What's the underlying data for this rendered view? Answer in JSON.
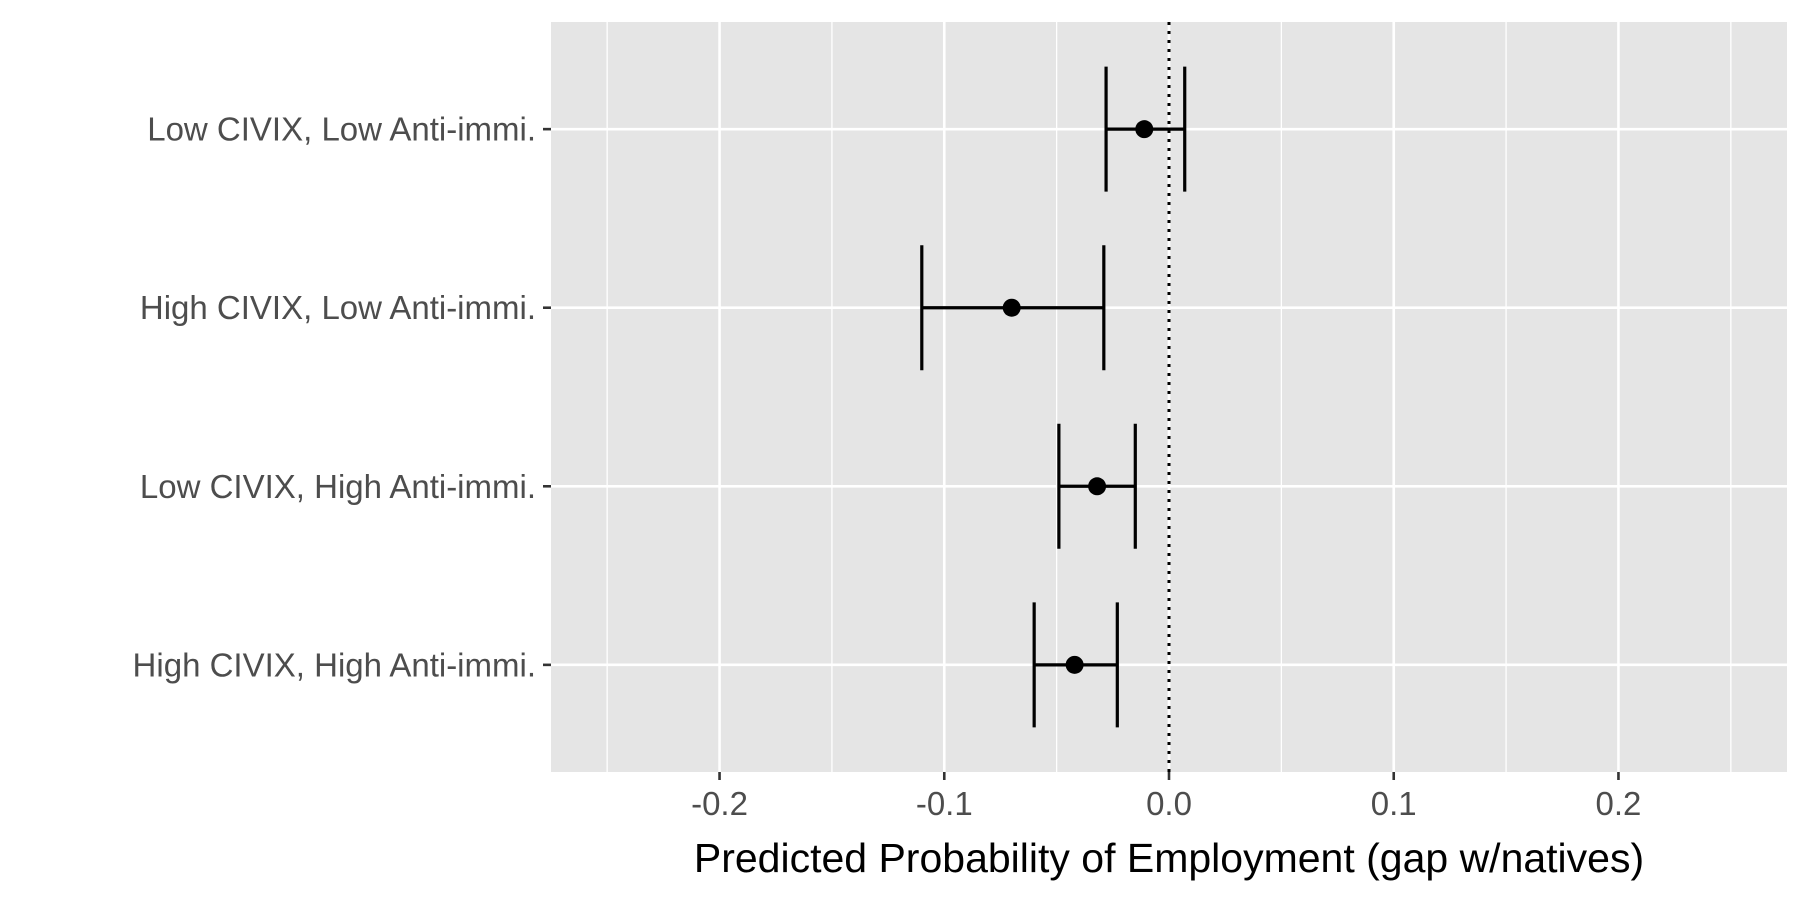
{
  "chart_data": {
    "type": "scatter",
    "subtype": "point-range (coefficient plot) with error bars",
    "title": "",
    "xlabel": "Predicted Probability of Employment (gap w/natives)",
    "ylabel": "",
    "xlim": [
      -0.275,
      0.275
    ],
    "x_ticks": [
      -0.2,
      -0.1,
      0.0,
      0.1,
      0.2
    ],
    "x_tick_labels": [
      "-0.2",
      "-0.1",
      "0.0",
      "0.1",
      "0.2"
    ],
    "x_minor_ticks": [
      -0.25,
      -0.15,
      -0.05,
      0.05,
      0.15,
      0.25
    ],
    "categories": [
      "Low CIVIX, Low Anti-immi.",
      "High CIVIX, Low Anti-immi.",
      "Low CIVIX, High Anti-immi.",
      "High CIVIX, High Anti-immi."
    ],
    "estimates": [
      -0.011,
      -0.07,
      -0.032,
      -0.042
    ],
    "ci_low": [
      -0.028,
      -0.11,
      -0.049,
      -0.06
    ],
    "ci_high": [
      0.007,
      -0.029,
      -0.015,
      -0.023
    ],
    "reference_line": {
      "x": 0.0,
      "style": "dotted"
    },
    "grid": true,
    "legend": "none",
    "colors": {
      "panel_background": "#e5e5e5",
      "gridline": "#ffffff",
      "marks": "#000000",
      "tick_label": "#4d4d4d",
      "axis_tick": "#333333"
    }
  }
}
